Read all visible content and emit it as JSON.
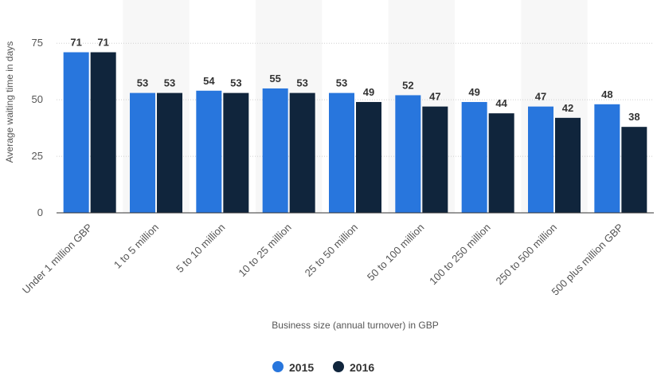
{
  "chart_data": {
    "type": "bar",
    "categories": [
      "Under 1 million GBP",
      "1 to 5 million",
      "5 to 10 million",
      "10 to 25 million",
      "25 to 50 million",
      "50 to 100 million",
      "100 to 250 million",
      "250 to 500 million",
      "500 plus million GBP"
    ],
    "series": [
      {
        "name": "2015",
        "color": "#2876dd",
        "values": [
          71,
          53,
          54,
          55,
          53,
          52,
          49,
          47,
          48
        ]
      },
      {
        "name": "2016",
        "color": "#10253c",
        "values": [
          71,
          53,
          53,
          53,
          49,
          47,
          44,
          42,
          38
        ]
      }
    ],
    "xlabel": "Business size (annual turnover) in GBP",
    "ylabel": "Average waiting time in days",
    "ylim": [
      0,
      80
    ],
    "yticks": [
      0,
      25,
      50,
      75
    ],
    "grid": true,
    "legend_position": "bottom-center",
    "data_labels": true
  }
}
